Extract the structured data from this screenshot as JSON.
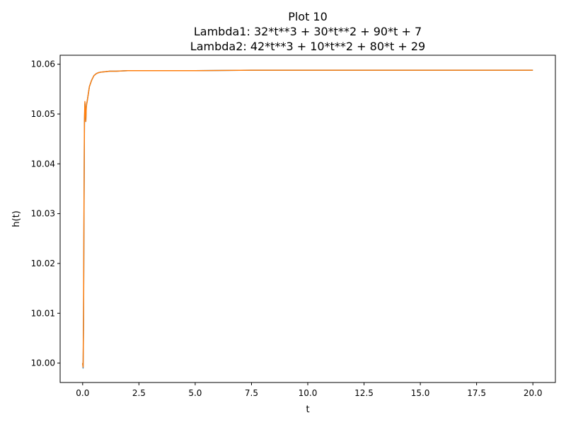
{
  "chart_data": {
    "type": "line",
    "title": "Plot 10",
    "subtitle_lines": [
      "Lambda1: 32*t**3 + 30*t**2 + 90*t + 7",
      "Lambda2: 42*t**3 + 10*t**2 + 80*t + 29"
    ],
    "xlabel": "t",
    "ylabel": "h(t)",
    "xlim": [
      -1.0,
      21.0
    ],
    "ylim": [
      9.9961,
      10.0618
    ],
    "x_ticks": [
      0.0,
      2.5,
      5.0,
      7.5,
      10.0,
      12.5,
      15.0,
      17.5,
      20.0
    ],
    "x_tick_labels": [
      "0.0",
      "2.5",
      "5.0",
      "7.5",
      "10.0",
      "12.5",
      "15.0",
      "17.5",
      "20.0"
    ],
    "y_ticks": [
      10.0,
      10.01,
      10.02,
      10.03,
      10.04,
      10.05,
      10.06
    ],
    "y_tick_labels": [
      "10.00",
      "10.01",
      "10.02",
      "10.03",
      "10.04",
      "10.05",
      "10.06"
    ],
    "grid": false,
    "series": [
      {
        "color": "#1f77b4",
        "x": [
          0.0,
          0.02,
          0.04,
          0.06,
          0.08,
          0.1,
          0.12,
          0.14,
          0.16,
          0.18,
          0.2,
          0.25,
          0.3,
          0.4,
          0.5,
          0.6,
          0.7,
          0.8,
          1.0,
          1.2,
          1.5,
          2.0,
          3.0,
          5.0,
          7.5,
          10.0,
          15.0,
          20.0
        ],
        "values": [
          10.0,
          9.999,
          10.008,
          10.03,
          10.048,
          10.052,
          10.05,
          10.0485,
          10.0515,
          10.0522,
          10.0525,
          10.054,
          10.0555,
          10.0568,
          10.0577,
          10.0581,
          10.0583,
          10.0584,
          10.0585,
          10.0586,
          10.0586,
          10.0587,
          10.0587,
          10.0587,
          10.0588,
          10.0588,
          10.0588,
          10.0588
        ]
      },
      {
        "color": "#ff7f0e",
        "x": [
          0.0,
          0.02,
          0.04,
          0.06,
          0.08,
          0.1,
          0.12,
          0.14,
          0.16,
          0.18,
          0.2,
          0.25,
          0.3,
          0.4,
          0.5,
          0.6,
          0.7,
          0.8,
          1.0,
          1.2,
          1.5,
          2.0,
          3.0,
          5.0,
          7.5,
          10.0,
          15.0,
          20.0
        ],
        "values": [
          10.0,
          9.9992,
          10.01,
          10.032,
          10.049,
          10.0525,
          10.0505,
          10.0485,
          10.0512,
          10.052,
          10.0525,
          10.054,
          10.0555,
          10.0568,
          10.0577,
          10.0581,
          10.0583,
          10.0584,
          10.0585,
          10.0586,
          10.0586,
          10.0587,
          10.0587,
          10.0587,
          10.0588,
          10.0588,
          10.0588,
          10.0588
        ]
      }
    ]
  }
}
